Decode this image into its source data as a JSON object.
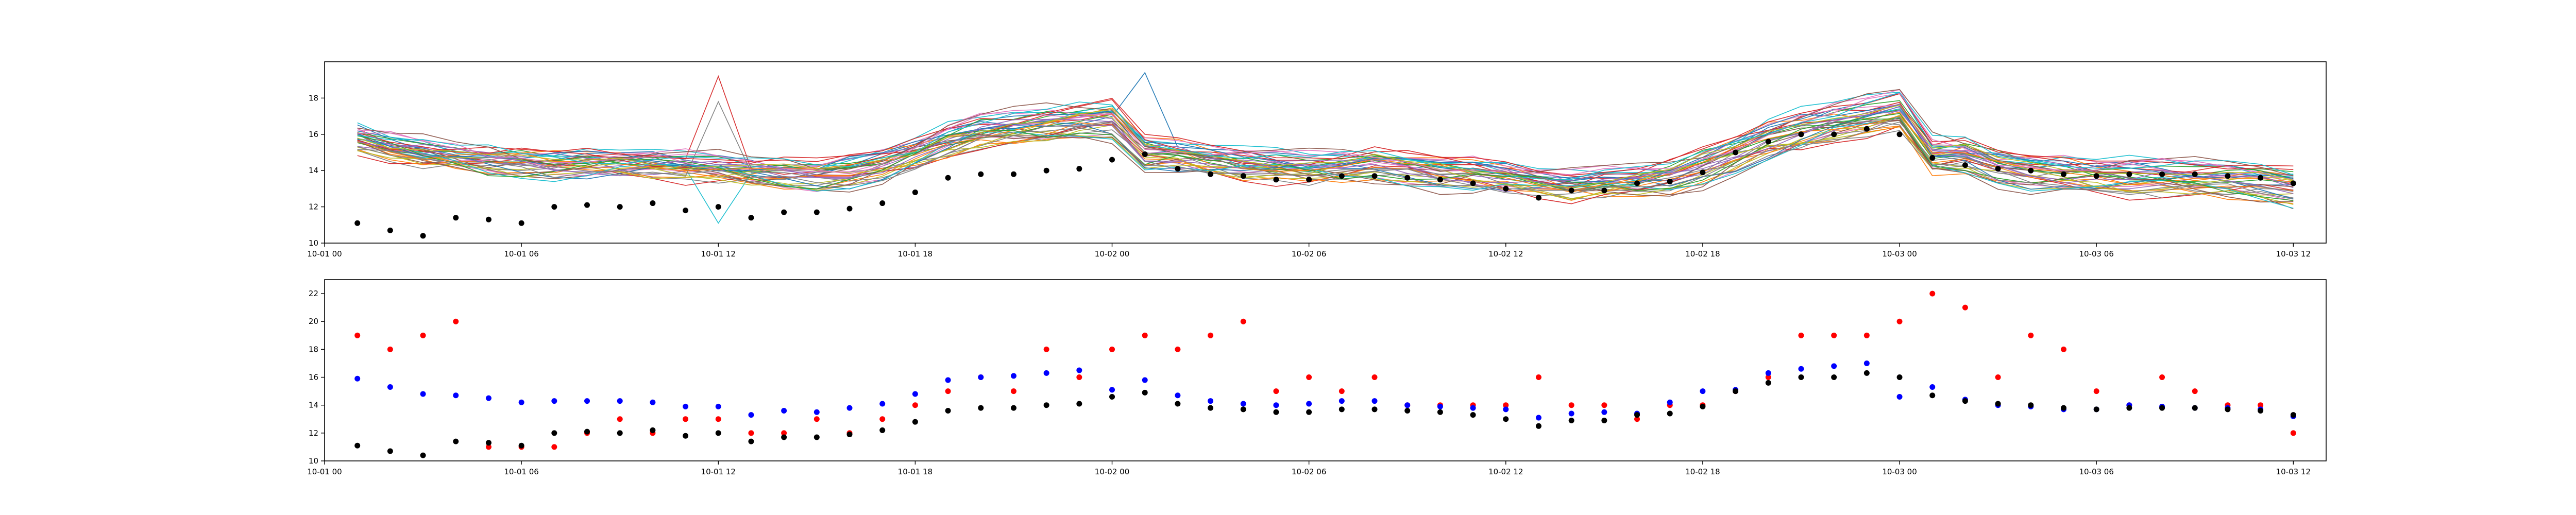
{
  "colors": {
    "ensemble_palette": [
      "#1f77b4",
      "#ff7f0e",
      "#2ca02c",
      "#d62728",
      "#9467bd",
      "#8c564b",
      "#e377c2",
      "#7f7f7f",
      "#bcbd22",
      "#17becf"
    ],
    "observed": "#000000",
    "forecast_a": "#0000ff",
    "forecast_b": "#ff0000"
  },
  "chart_data": [
    {
      "type": "line",
      "description_key": "top",
      "title": "",
      "xlabel": "",
      "ylabel": "",
      "x_unit": "datetime",
      "xlim": [
        "2000-10-01T00:00",
        "2000-10-03T13:00"
      ],
      "ylim": [
        10,
        20
      ],
      "x_ticks": [
        "2000-10-01T00:00",
        "2000-10-01T06:00",
        "2000-10-01T12:00",
        "2000-10-01T18:00",
        "2000-10-02T00:00",
        "2000-10-02T06:00",
        "2000-10-02T12:00",
        "2000-10-02T18:00",
        "2000-10-03T00:00",
        "2000-10-03T06:00",
        "2000-10-03T12:00"
      ],
      "x_tick_labels": [
        "10-01 00",
        "10-01 06",
        "10-01 12",
        "10-01 18",
        "10-02 00",
        "10-02 06",
        "10-02 12",
        "10-02 18",
        "10-03 00",
        "10-03 06",
        "10-03 12"
      ],
      "y_ticks": [
        10,
        12,
        14,
        16,
        18
      ],
      "y_tick_labels": [
        "10",
        "12",
        "14",
        "16",
        "18"
      ],
      "grid": false,
      "ensemble": {
        "members": 40,
        "x_start": "2000-10-01T01:00",
        "x_step_hours": 1,
        "mean": [
          15.8,
          15.3,
          15.0,
          14.8,
          14.6,
          14.5,
          14.4,
          14.5,
          14.5,
          14.4,
          14.3,
          14.2,
          14.0,
          13.9,
          13.8,
          14.0,
          14.4,
          15.0,
          15.7,
          16.2,
          16.4,
          16.6,
          16.8,
          16.9,
          15.0,
          14.9,
          14.6,
          14.4,
          14.3,
          14.2,
          14.3,
          14.4,
          14.2,
          14.0,
          13.9,
          13.7,
          13.4,
          13.2,
          13.4,
          13.5,
          13.7,
          14.3,
          15.0,
          15.8,
          16.3,
          16.7,
          17.0,
          17.4,
          14.9,
          14.9,
          14.3,
          14.0,
          13.9,
          13.8,
          13.7,
          13.7,
          13.7,
          13.6,
          13.5,
          13.2
        ],
        "spread": [
          0.6,
          0.6,
          0.6,
          0.6,
          0.6,
          0.6,
          0.6,
          0.6,
          0.6,
          0.6,
          0.7,
          0.7,
          0.7,
          0.7,
          0.7,
          0.8,
          0.8,
          0.8,
          0.9,
          0.9,
          0.9,
          0.9,
          0.9,
          1.0,
          0.9,
          0.8,
          0.8,
          0.8,
          0.8,
          0.8,
          0.8,
          0.8,
          0.8,
          0.8,
          0.8,
          0.8,
          0.7,
          0.7,
          0.8,
          0.8,
          0.9,
          1.0,
          1.0,
          1.1,
          1.1,
          1.1,
          1.1,
          1.1,
          1.0,
          0.9,
          0.9,
          0.9,
          0.9,
          0.9,
          1.0,
          1.0,
          1.0,
          1.0,
          1.0,
          1.0
        ],
        "outliers": [
          {
            "member": 3,
            "x": "2000-10-01T12:00",
            "y": 19.2
          },
          {
            "member": 27,
            "x": "2000-10-01T12:00",
            "y": 17.8
          },
          {
            "member": 9,
            "x": "2000-10-01T12:00",
            "y": 11.1
          },
          {
            "member": 0,
            "x": "2000-10-02T01:00",
            "y": 19.4
          }
        ]
      },
      "series": [
        {
          "role": "observed",
          "marker": "dot",
          "x": [
            "2000-10-01T01:00",
            "2000-10-01T02:00",
            "2000-10-01T03:00",
            "2000-10-01T04:00",
            "2000-10-01T05:00",
            "2000-10-01T06:00",
            "2000-10-01T07:00",
            "2000-10-01T08:00",
            "2000-10-01T09:00",
            "2000-10-01T10:00",
            "2000-10-01T11:00",
            "2000-10-01T12:00",
            "2000-10-01T13:00",
            "2000-10-01T14:00",
            "2000-10-01T15:00",
            "2000-10-01T16:00",
            "2000-10-01T17:00",
            "2000-10-01T18:00",
            "2000-10-01T19:00",
            "2000-10-01T20:00",
            "2000-10-01T21:00",
            "2000-10-01T22:00",
            "2000-10-01T23:00",
            "2000-10-02T00:00",
            "2000-10-02T01:00",
            "2000-10-02T02:00",
            "2000-10-02T03:00",
            "2000-10-02T04:00",
            "2000-10-02T05:00",
            "2000-10-02T06:00",
            "2000-10-02T07:00",
            "2000-10-02T08:00",
            "2000-10-02T09:00",
            "2000-10-02T10:00",
            "2000-10-02T11:00",
            "2000-10-02T12:00",
            "2000-10-02T13:00",
            "2000-10-02T14:00",
            "2000-10-02T15:00",
            "2000-10-02T16:00",
            "2000-10-02T17:00",
            "2000-10-02T18:00",
            "2000-10-02T19:00",
            "2000-10-02T20:00",
            "2000-10-02T21:00",
            "2000-10-02T22:00",
            "2000-10-02T23:00",
            "2000-10-03T00:00",
            "2000-10-03T01:00",
            "2000-10-03T02:00",
            "2000-10-03T03:00",
            "2000-10-03T04:00",
            "2000-10-03T05:00",
            "2000-10-03T06:00",
            "2000-10-03T07:00",
            "2000-10-03T08:00",
            "2000-10-03T09:00",
            "2000-10-03T10:00",
            "2000-10-03T11:00",
            "2000-10-03T12:00"
          ],
          "y": [
            11.1,
            10.7,
            10.4,
            11.4,
            11.3,
            11.1,
            12.0,
            12.1,
            12.0,
            12.2,
            11.8,
            12.0,
            11.4,
            11.7,
            11.7,
            11.9,
            12.2,
            12.8,
            13.6,
            13.8,
            13.8,
            14.0,
            14.1,
            14.6,
            14.9,
            14.1,
            13.8,
            13.7,
            13.5,
            13.5,
            13.7,
            13.7,
            13.6,
            13.5,
            13.3,
            13.0,
            12.5,
            12.9,
            12.9,
            13.3,
            13.4,
            13.9,
            15.0,
            15.6,
            16.0,
            16.0,
            16.3,
            16.0,
            14.7,
            14.3,
            14.1,
            14.0,
            13.8,
            13.7,
            13.8,
            13.8,
            13.8,
            13.7,
            13.6,
            13.3
          ]
        }
      ]
    },
    {
      "type": "scatter",
      "description_key": "bottom",
      "title": "",
      "xlabel": "",
      "ylabel": "",
      "x_unit": "datetime",
      "xlim": [
        "2000-10-01T00:00",
        "2000-10-03T13:00"
      ],
      "ylim": [
        10,
        23
      ],
      "x_ticks": [
        "2000-10-01T00:00",
        "2000-10-01T06:00",
        "2000-10-01T12:00",
        "2000-10-01T18:00",
        "2000-10-02T00:00",
        "2000-10-02T06:00",
        "2000-10-02T12:00",
        "2000-10-02T18:00",
        "2000-10-03T00:00",
        "2000-10-03T06:00",
        "2000-10-03T12:00"
      ],
      "x_tick_labels": [
        "10-01 00",
        "10-01 06",
        "10-01 12",
        "10-01 18",
        "10-02 00",
        "10-02 06",
        "10-02 12",
        "10-02 18",
        "10-03 00",
        "10-03 06",
        "10-03 12"
      ],
      "y_ticks": [
        10,
        12,
        14,
        16,
        18,
        20,
        22
      ],
      "y_tick_labels": [
        "10",
        "12",
        "14",
        "16",
        "18",
        "20",
        "22"
      ],
      "grid": false,
      "x": [
        "2000-10-01T01:00",
        "2000-10-01T02:00",
        "2000-10-01T03:00",
        "2000-10-01T04:00",
        "2000-10-01T05:00",
        "2000-10-01T06:00",
        "2000-10-01T07:00",
        "2000-10-01T08:00",
        "2000-10-01T09:00",
        "2000-10-01T10:00",
        "2000-10-01T11:00",
        "2000-10-01T12:00",
        "2000-10-01T13:00",
        "2000-10-01T14:00",
        "2000-10-01T15:00",
        "2000-10-01T16:00",
        "2000-10-01T17:00",
        "2000-10-01T18:00",
        "2000-10-01T19:00",
        "2000-10-01T20:00",
        "2000-10-01T21:00",
        "2000-10-01T22:00",
        "2000-10-01T23:00",
        "2000-10-02T00:00",
        "2000-10-02T01:00",
        "2000-10-02T02:00",
        "2000-10-02T03:00",
        "2000-10-02T04:00",
        "2000-10-02T05:00",
        "2000-10-02T06:00",
        "2000-10-02T07:00",
        "2000-10-02T08:00",
        "2000-10-02T09:00",
        "2000-10-02T10:00",
        "2000-10-02T11:00",
        "2000-10-02T12:00",
        "2000-10-02T13:00",
        "2000-10-02T14:00",
        "2000-10-02T15:00",
        "2000-10-02T16:00",
        "2000-10-02T17:00",
        "2000-10-02T18:00",
        "2000-10-02T19:00",
        "2000-10-02T20:00",
        "2000-10-02T21:00",
        "2000-10-02T22:00",
        "2000-10-02T23:00",
        "2000-10-03T00:00",
        "2000-10-03T01:00",
        "2000-10-03T02:00",
        "2000-10-03T03:00",
        "2000-10-03T04:00",
        "2000-10-03T05:00",
        "2000-10-03T06:00",
        "2000-10-03T07:00",
        "2000-10-03T08:00",
        "2000-10-03T09:00",
        "2000-10-03T10:00",
        "2000-10-03T11:00",
        "2000-10-03T12:00"
      ],
      "series": [
        {
          "role": "forecast_b",
          "y": [
            19.0,
            18.0,
            19.0,
            20.0,
            11.0,
            11.0,
            11.0,
            12.0,
            13.0,
            12.0,
            13.0,
            13.0,
            12.0,
            12.0,
            13.0,
            12.0,
            13.0,
            14.0,
            15.0,
            16.0,
            15.0,
            18.0,
            16.0,
            18.0,
            19.0,
            18.0,
            19.0,
            20.0,
            15.0,
            16.0,
            15.0,
            16.0,
            14.0,
            14.0,
            14.0,
            14.0,
            16.0,
            14.0,
            14.0,
            13.0,
            14.0,
            14.0,
            15.0,
            16.0,
            19.0,
            19.0,
            19.0,
            20.0,
            22.0,
            21.0,
            16.0,
            19.0,
            18.0,
            15.0,
            14.0,
            16.0,
            15.0,
            14.0,
            14.0,
            12.0
          ]
        },
        {
          "role": "forecast_a",
          "y": [
            15.9,
            15.3,
            14.8,
            14.7,
            14.5,
            14.2,
            14.3,
            14.3,
            14.3,
            14.2,
            13.9,
            13.9,
            13.3,
            13.6,
            13.5,
            13.8,
            14.1,
            14.8,
            15.8,
            16.0,
            16.1,
            16.3,
            16.5,
            15.1,
            15.8,
            14.7,
            14.3,
            14.1,
            14.0,
            14.1,
            14.3,
            14.3,
            14.0,
            13.9,
            13.8,
            13.7,
            13.1,
            13.4,
            13.5,
            13.4,
            14.2,
            15.0,
            15.1,
            16.3,
            16.6,
            16.8,
            17.0,
            14.6,
            15.3,
            14.4,
            14.0,
            13.9,
            13.7,
            13.7,
            14.0,
            13.9,
            13.8,
            13.8,
            13.7,
            13.2
          ]
        },
        {
          "role": "observed",
          "y": [
            11.1,
            10.7,
            10.4,
            11.4,
            11.3,
            11.1,
            12.0,
            12.1,
            12.0,
            12.2,
            11.8,
            12.0,
            11.4,
            11.7,
            11.7,
            11.9,
            12.2,
            12.8,
            13.6,
            13.8,
            13.8,
            14.0,
            14.1,
            14.6,
            14.9,
            14.1,
            13.8,
            13.7,
            13.5,
            13.5,
            13.7,
            13.7,
            13.6,
            13.5,
            13.3,
            13.0,
            12.5,
            12.9,
            12.9,
            13.3,
            13.4,
            13.9,
            15.0,
            15.6,
            16.0,
            16.0,
            16.3,
            16.0,
            14.7,
            14.3,
            14.1,
            14.0,
            13.8,
            13.7,
            13.8,
            13.8,
            13.8,
            13.7,
            13.6,
            13.3
          ]
        }
      ]
    }
  ]
}
